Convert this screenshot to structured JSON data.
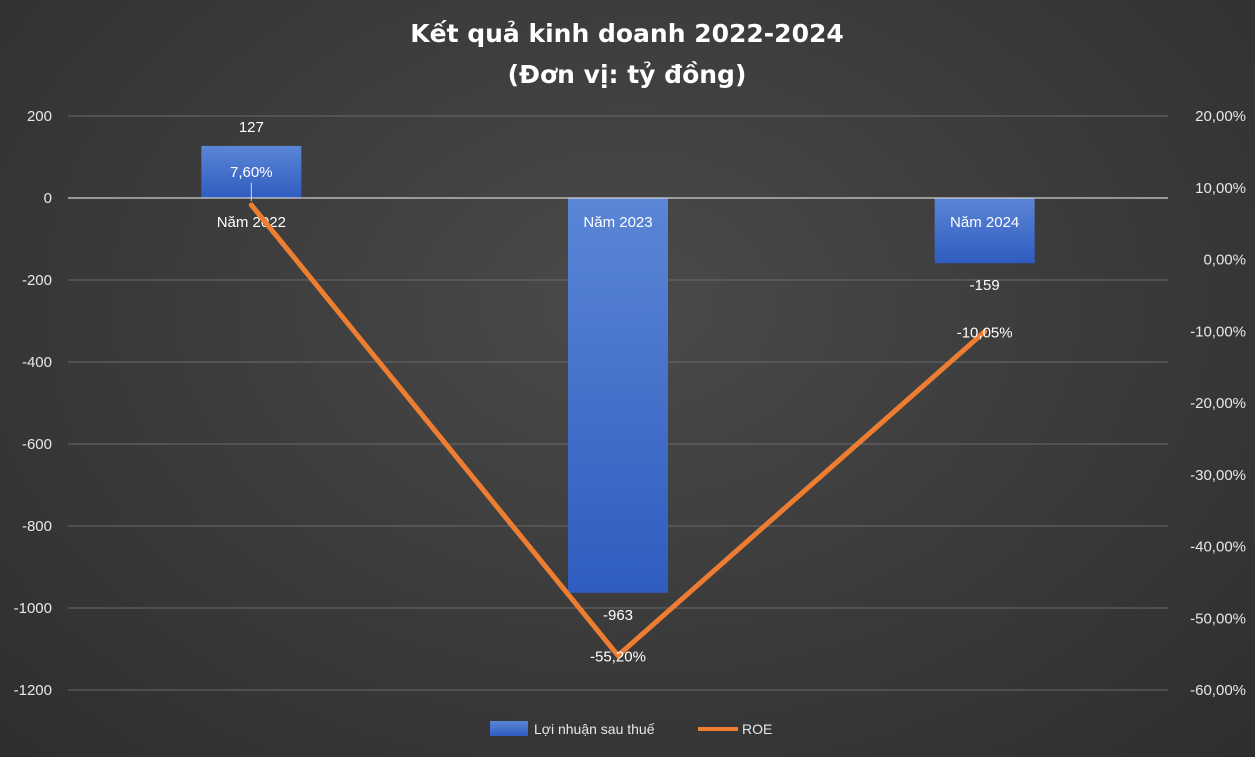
{
  "chart_data": {
    "type": "bar",
    "title": "Kết quả kinh doanh 2022-2024",
    "subtitle": "(Đơn vị: tỷ đồng)",
    "categories": [
      "Năm 2022",
      "Năm 2023",
      "Năm 2024"
    ],
    "series": [
      {
        "name": "Lợi nhuận sau thuế",
        "type": "bar",
        "axis": "left",
        "values": [
          127,
          -963,
          -159
        ],
        "labels": [
          "127",
          "-963",
          "-159"
        ],
        "color": "#4472c4"
      },
      {
        "name": "ROE",
        "type": "line",
        "axis": "right",
        "values": [
          7.6,
          -55.2,
          -10.05
        ],
        "labels": [
          "7,60%",
          "-55,20%",
          "-10,05%"
        ],
        "color": "#ed7d31"
      }
    ],
    "y_left": {
      "min": -1200,
      "max": 200,
      "ticks": [
        200,
        0,
        -200,
        -400,
        -600,
        -800,
        -1000,
        -1200
      ],
      "tick_labels": [
        "200",
        "0",
        "-200",
        "-400",
        "-600",
        "-800",
        "-1000",
        "-1200"
      ]
    },
    "y_right": {
      "min": -60,
      "max": 20,
      "ticks": [
        20,
        10,
        0,
        -10,
        -20,
        -30,
        -40,
        -50,
        -60
      ],
      "tick_labels": [
        "20,00%",
        "10,00%",
        "0,00%",
        "-10,00%",
        "-20,00%",
        "-30,00%",
        "-40,00%",
        "-50,00%",
        "-60,00%"
      ]
    },
    "grid": true,
    "legend_position": "bottom"
  }
}
